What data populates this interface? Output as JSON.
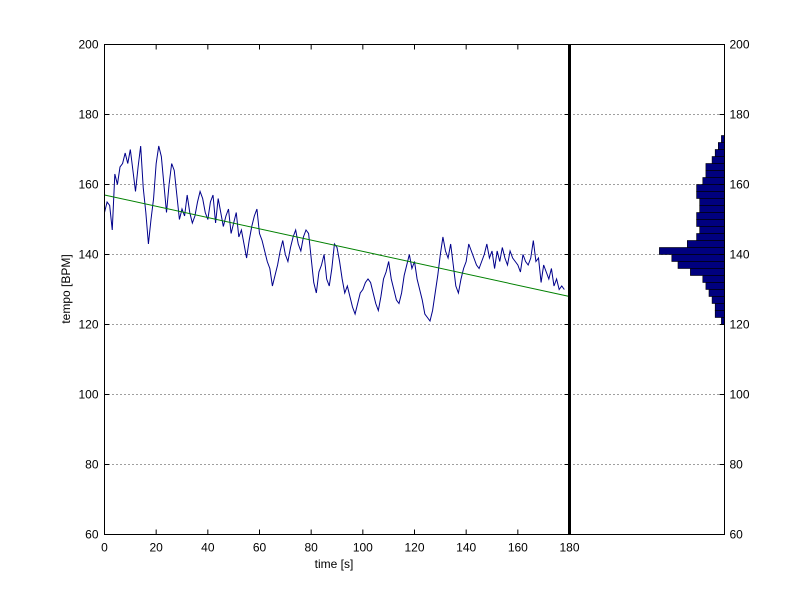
{
  "chart_data": {
    "type": "line",
    "xlabel": "time [s]",
    "ylabel": "tempo [BPM]",
    "xlim": [
      0,
      180
    ],
    "ylim": [
      60,
      200
    ],
    "xticks": [
      0,
      20,
      40,
      60,
      80,
      100,
      120,
      140,
      160,
      180
    ],
    "yticks": [
      60,
      80,
      100,
      120,
      140,
      160,
      180,
      200
    ],
    "grid": "horizontal-dotted",
    "right_panel": "histogram",
    "colors": {
      "tempo": "#00008B",
      "trend": "#008000",
      "histogram": "#00007F",
      "cursor": "#000000"
    },
    "cursor_x": 180,
    "series": [
      {
        "type": "line",
        "points": [
          [
            0,
            152
          ],
          [
            1,
            155
          ],
          [
            2,
            154
          ],
          [
            3,
            147
          ],
          [
            4,
            163
          ],
          [
            5,
            160
          ],
          [
            6,
            165
          ],
          [
            7,
            166
          ],
          [
            8,
            169
          ],
          [
            9,
            166
          ],
          [
            10,
            170
          ],
          [
            11,
            164
          ],
          [
            12,
            158
          ],
          [
            13,
            165
          ],
          [
            14,
            171
          ],
          [
            15,
            159
          ],
          [
            16,
            152
          ],
          [
            17,
            143
          ],
          [
            18,
            150
          ],
          [
            19,
            156
          ],
          [
            20,
            166
          ],
          [
            21,
            171
          ],
          [
            22,
            168
          ],
          [
            23,
            160
          ],
          [
            24,
            152
          ],
          [
            25,
            160
          ],
          [
            26,
            166
          ],
          [
            27,
            164
          ],
          [
            28,
            157
          ],
          [
            29,
            150
          ],
          [
            30,
            153
          ],
          [
            31,
            151
          ],
          [
            32,
            157
          ],
          [
            33,
            152
          ],
          [
            34,
            149
          ],
          [
            35,
            151
          ],
          [
            36,
            155
          ],
          [
            37,
            158
          ],
          [
            38,
            156
          ],
          [
            39,
            152
          ],
          [
            40,
            150
          ],
          [
            41,
            155
          ],
          [
            42,
            157
          ],
          [
            43,
            149
          ],
          [
            44,
            156
          ],
          [
            45,
            152
          ],
          [
            46,
            148
          ],
          [
            47,
            151
          ],
          [
            48,
            153
          ],
          [
            49,
            146
          ],
          [
            50,
            149
          ],
          [
            51,
            152
          ],
          [
            52,
            145
          ],
          [
            53,
            147
          ],
          [
            54,
            143
          ],
          [
            55,
            139
          ],
          [
            56,
            144
          ],
          [
            57,
            148
          ],
          [
            58,
            151
          ],
          [
            59,
            153
          ],
          [
            60,
            146
          ],
          [
            61,
            144
          ],
          [
            62,
            141
          ],
          [
            63,
            138
          ],
          [
            64,
            136
          ],
          [
            65,
            131
          ],
          [
            66,
            134
          ],
          [
            67,
            137
          ],
          [
            68,
            141
          ],
          [
            69,
            144
          ],
          [
            70,
            140
          ],
          [
            71,
            138
          ],
          [
            72,
            142
          ],
          [
            73,
            145
          ],
          [
            74,
            147
          ],
          [
            75,
            143
          ],
          [
            76,
            141
          ],
          [
            77,
            145
          ],
          [
            78,
            147
          ],
          [
            79,
            146
          ],
          [
            80,
            139
          ],
          [
            81,
            132
          ],
          [
            82,
            129
          ],
          [
            83,
            135
          ],
          [
            84,
            137
          ],
          [
            85,
            140
          ],
          [
            86,
            133
          ],
          [
            87,
            131
          ],
          [
            88,
            136
          ],
          [
            89,
            143
          ],
          [
            90,
            142
          ],
          [
            91,
            138
          ],
          [
            92,
            133
          ],
          [
            93,
            129
          ],
          [
            94,
            131
          ],
          [
            95,
            128
          ],
          [
            96,
            125
          ],
          [
            97,
            123
          ],
          [
            98,
            126
          ],
          [
            99,
            129
          ],
          [
            100,
            130
          ],
          [
            101,
            132
          ],
          [
            102,
            133
          ],
          [
            103,
            132
          ],
          [
            104,
            129
          ],
          [
            105,
            126
          ],
          [
            106,
            124
          ],
          [
            107,
            128
          ],
          [
            108,
            133
          ],
          [
            109,
            135
          ],
          [
            110,
            138
          ],
          [
            111,
            133
          ],
          [
            112,
            130
          ],
          [
            113,
            127
          ],
          [
            114,
            126
          ],
          [
            115,
            129
          ],
          [
            116,
            134
          ],
          [
            117,
            137
          ],
          [
            118,
            140
          ],
          [
            119,
            136
          ],
          [
            120,
            138
          ],
          [
            121,
            133
          ],
          [
            122,
            130
          ],
          [
            123,
            127
          ],
          [
            124,
            123
          ],
          [
            125,
            122
          ],
          [
            126,
            121
          ],
          [
            127,
            124
          ],
          [
            128,
            129
          ],
          [
            129,
            134
          ],
          [
            130,
            140
          ],
          [
            131,
            145
          ],
          [
            132,
            141
          ],
          [
            133,
            139
          ],
          [
            134,
            143
          ],
          [
            135,
            137
          ],
          [
            136,
            131
          ],
          [
            137,
            129
          ],
          [
            138,
            133
          ],
          [
            139,
            136
          ],
          [
            140,
            138
          ],
          [
            141,
            143
          ],
          [
            142,
            141
          ],
          [
            143,
            139
          ],
          [
            144,
            137
          ],
          [
            145,
            136
          ],
          [
            146,
            138
          ],
          [
            147,
            140
          ],
          [
            148,
            143
          ],
          [
            149,
            139
          ],
          [
            150,
            141
          ],
          [
            151,
            136
          ],
          [
            152,
            141
          ],
          [
            153,
            138
          ],
          [
            154,
            142
          ],
          [
            155,
            139
          ],
          [
            156,
            137
          ],
          [
            157,
            141
          ],
          [
            158,
            139
          ],
          [
            159,
            138
          ],
          [
            160,
            137
          ],
          [
            161,
            135
          ],
          [
            162,
            140
          ],
          [
            163,
            138
          ],
          [
            164,
            137
          ],
          [
            165,
            139
          ],
          [
            166,
            144
          ],
          [
            167,
            138
          ],
          [
            168,
            139
          ],
          [
            169,
            132
          ],
          [
            170,
            137
          ],
          [
            171,
            135
          ],
          [
            172,
            133
          ],
          [
            173,
            136
          ],
          [
            174,
            131
          ],
          [
            175,
            133
          ],
          [
            176,
            130
          ],
          [
            177,
            131
          ],
          [
            178,
            130
          ]
        ]
      },
      {
        "type": "line",
        "points": [
          [
            0,
            157
          ],
          [
            180,
            128
          ]
        ]
      }
    ],
    "histogram": {
      "bin_width": 2,
      "bins": [
        [
          120,
          1
        ],
        [
          122,
          3
        ],
        [
          124,
          3
        ],
        [
          126,
          4
        ],
        [
          128,
          5
        ],
        [
          130,
          6
        ],
        [
          132,
          7
        ],
        [
          134,
          11
        ],
        [
          136,
          15
        ],
        [
          138,
          17
        ],
        [
          140,
          21
        ],
        [
          142,
          12
        ],
        [
          144,
          9
        ],
        [
          146,
          8
        ],
        [
          148,
          9
        ],
        [
          150,
          9
        ],
        [
          152,
          8
        ],
        [
          154,
          8
        ],
        [
          156,
          9
        ],
        [
          158,
          9
        ],
        [
          160,
          7
        ],
        [
          162,
          6
        ],
        [
          164,
          6
        ],
        [
          166,
          4
        ],
        [
          168,
          3
        ],
        [
          170,
          2
        ],
        [
          172,
          1
        ]
      ],
      "count_max": 22
    }
  }
}
